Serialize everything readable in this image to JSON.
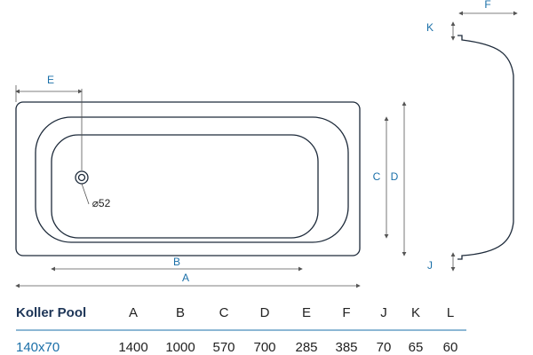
{
  "drawing": {
    "labels": {
      "E": "E",
      "C": "C",
      "D": "D",
      "B": "B",
      "A": "A",
      "K": "K",
      "F": "F",
      "J": "J",
      "drain": "⌀52"
    }
  },
  "table": {
    "header": [
      "Koller Pool",
      "A",
      "B",
      "C",
      "D",
      "E",
      "F",
      "J",
      "K",
      "L"
    ],
    "rows": [
      [
        "140x70",
        1400,
        1000,
        570,
        700,
        285,
        385,
        70,
        65,
        60
      ]
    ]
  }
}
